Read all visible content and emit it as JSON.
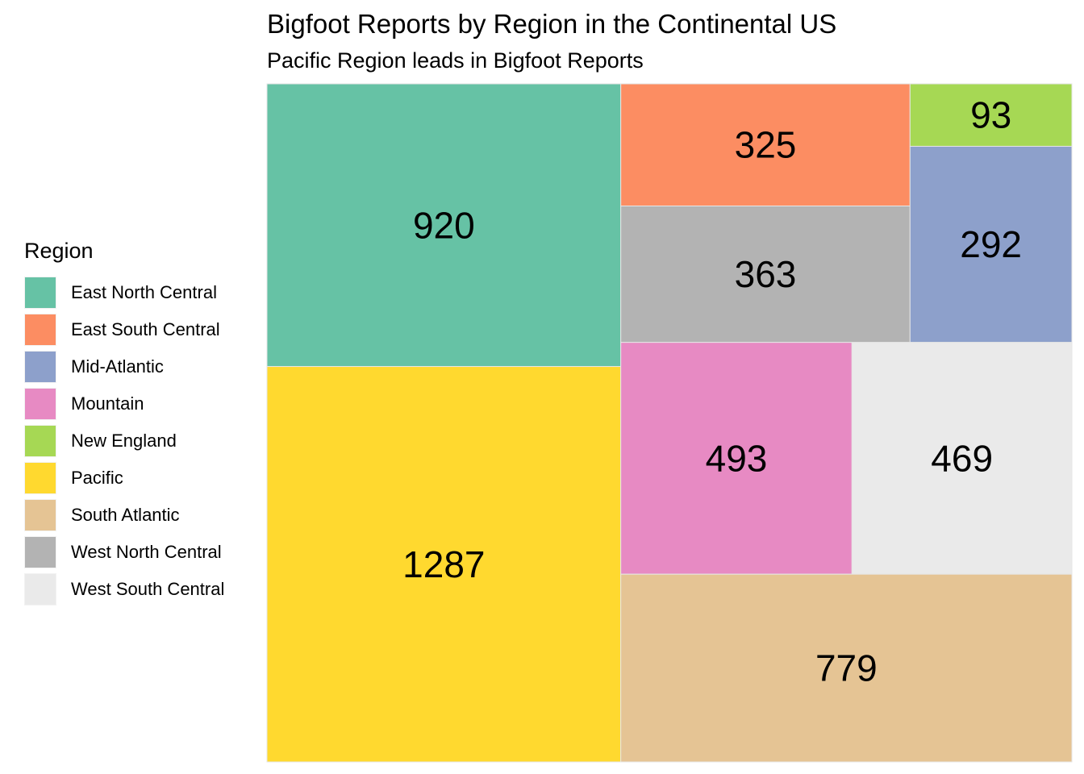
{
  "chart_data": {
    "type": "treemap",
    "title": "Bigfoot Reports by Region in the Continental US",
    "subtitle": "Pacific Region leads in Bigfoot Reports",
    "legend_title": "Region",
    "legend_position": "left",
    "categories": [
      {
        "name": "East North Central",
        "value": 920,
        "color": "#66C2A5"
      },
      {
        "name": "East South Central",
        "value": 325,
        "color": "#FC8D62"
      },
      {
        "name": "Mid-Atlantic",
        "value": 292,
        "color": "#8DA0CB"
      },
      {
        "name": "Mountain",
        "value": 493,
        "color": "#E78AC3"
      },
      {
        "name": "New England",
        "value": 93,
        "color": "#A6D854"
      },
      {
        "name": "Pacific",
        "value": 1287,
        "color": "#FFD92F"
      },
      {
        "name": "South Atlantic",
        "value": 779,
        "color": "#E5C494"
      },
      {
        "name": "West North Central",
        "value": 363,
        "color": "#B3B3B3"
      },
      {
        "name": "West South Central",
        "value": 469,
        "color": "#EAEAEA"
      }
    ]
  }
}
